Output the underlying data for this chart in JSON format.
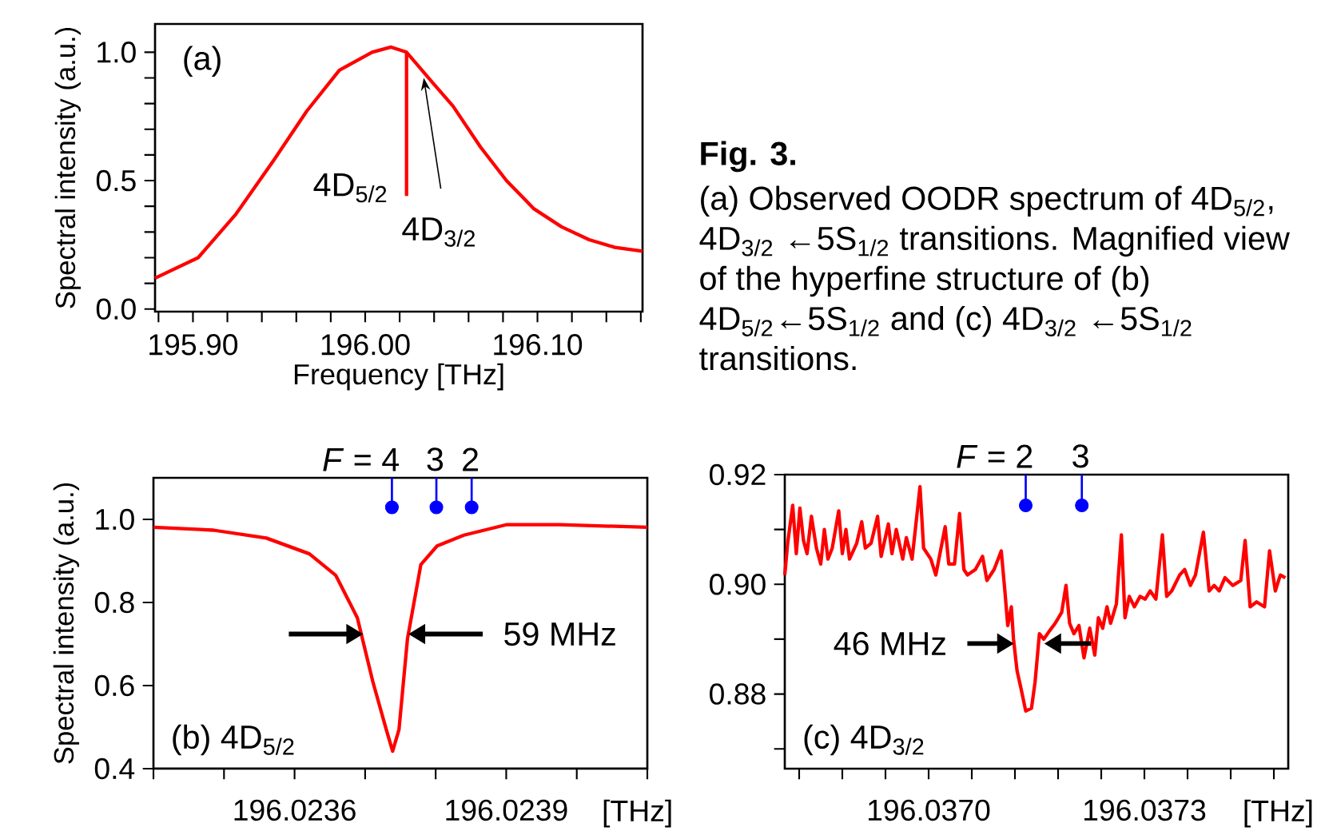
{
  "chart_data": [
    {
      "type": "line",
      "xlabel": "Frequency [THz]",
      "ylabel": "Spectral intensity (a.u.)",
      "xlim": [
        195.878,
        196.161
      ],
      "ylim": [
        -0.01,
        1.11
      ],
      "xticks": [
        {
          "value": 195.88,
          "label": null
        },
        {
          "value": 195.9,
          "label": "195.90"
        },
        {
          "value": 195.92,
          "label": null
        },
        {
          "value": 195.94,
          "label": null
        },
        {
          "value": 195.96,
          "label": null
        },
        {
          "value": 195.98,
          "label": null
        },
        {
          "value": 196.0,
          "label": "196.00"
        },
        {
          "value": 196.02,
          "label": null
        },
        {
          "value": 196.04,
          "label": null
        },
        {
          "value": 196.06,
          "label": null
        },
        {
          "value": 196.08,
          "label": null
        },
        {
          "value": 196.1,
          "label": "196.10"
        },
        {
          "value": 196.12,
          "label": null
        },
        {
          "value": 196.14,
          "label": null
        },
        {
          "value": 196.16,
          "label": null
        }
      ],
      "yticks": [
        {
          "value": 0,
          "label": "0.0"
        },
        {
          "value": 0.1,
          "label": null
        },
        {
          "value": 0.2,
          "label": null
        },
        {
          "value": 0.3,
          "label": null
        },
        {
          "value": 0.4,
          "label": null
        },
        0.5,
        {
          "value": 0.6,
          "label": null
        },
        {
          "value": 0.7,
          "label": null
        },
        {
          "value": 0.8,
          "label": null
        },
        {
          "value": 0.9,
          "label": null
        },
        {
          "value": 1,
          "label": "1.0"
        }
      ],
      "annotations": [
        "(a)",
        {
          "text": "4D$_{5/2}$",
          "x": 196.024,
          "y": 0.44
        },
        {
          "text": "4D$_{3/2}$",
          "x": 196.034,
          "y": 0.9
        }
      ],
      "series": [
        {
          "color": "#ff0000",
          "x": [
            195.878,
            195.903,
            195.925,
            195.947,
            195.966,
            195.985,
            196.004,
            196.015,
            196.024,
            196.038,
            196.051,
            196.067,
            196.082,
            196.098,
            196.114,
            196.13,
            196.145,
            196.161
          ],
          "values": [
            0.12,
            0.2,
            0.37,
            0.58,
            0.77,
            0.93,
            1.0,
            1.02,
            1.0,
            0.89,
            0.79,
            0.63,
            0.5,
            0.39,
            0.32,
            0.27,
            0.24,
            0.225
          ]
        },
        {
          "color": "#ff0000",
          "x": [
            196.024,
            196.024
          ],
          "values": [
            0.44,
            1.0
          ]
        }
      ]
    },
    {
      "type": "other",
      "title": "Fig. 3.",
      "subtitle": "(a) Observed OODR spectrum of 4D$_{5/2}$, 4D$_{3/2}$ ←5S$_{1/2}$ transitions. Magnified view of the hyperfine structure of (b) 4D$_{5/2}$←5S$_{1/2}$ and (c) 4D$_{3/2}$ ←5S$_{1/2}$ transitions."
    },
    {
      "type": "line",
      "xlabel": "[THz]",
      "ylabel": "Spectral intensity (a.u.)",
      "xlim": [
        196.0234,
        196.0241
      ],
      "ylim": [
        0.4,
        1.1
      ],
      "xticks": [
        {
          "value": 196.0234,
          "label": null
        },
        {
          "value": 196.0235,
          "label": null
        },
        196.0236,
        {
          "value": 196.0237,
          "label": null
        },
        {
          "value": 196.0238,
          "label": null
        },
        196.0239,
        {
          "value": 196.024,
          "label": null
        },
        {
          "value": 196.0241,
          "label": null
        }
      ],
      "yticks": [
        0.4,
        0.6,
        0.8,
        {
          "value": 1,
          "label": "1.0"
        }
      ],
      "annotations": [
        {
          "text": "*F* = 4",
          "x": 196.023738,
          "y": 1.029
        },
        {
          "text": "3",
          "x": 196.023801,
          "y": 1.029
        },
        {
          "text": "2",
          "x": 196.023851,
          "y": 1.029
        },
        "(b) 4D$_{5/2}$",
        {
          "text": "59 MHz",
          "x": 196.023761,
          "y": 0.724
        }
      ],
      "series": [
        {
          "color": "#ff0000",
          "x": [
            196.0234,
            196.023485,
            196.02356,
            196.023621,
            196.0236585,
            196.023689,
            196.023711,
            196.02373,
            196.023739,
            196.023748,
            196.02376,
            196.023779,
            196.023802,
            196.02384,
            196.0239,
            196.023976,
            196.0241
          ],
          "values": [
            0.981,
            0.974,
            0.955,
            0.917,
            0.865,
            0.763,
            0.609,
            0.494,
            0.442,
            0.494,
            0.712,
            0.891,
            0.936,
            0.962,
            0.987,
            0.987,
            0.981
          ]
        },
        {
          "type": "scatter",
          "marker": "circle",
          "color": "#0000ff",
          "x": [
            196.023738,
            196.023801,
            196.023851
          ],
          "values": [
            1.029,
            1.029,
            1.029
          ]
        }
      ]
    },
    {
      "type": "line",
      "xlabel": "[THz]",
      "xlim": [
        196.0368,
        196.0375
      ],
      "ylim": [
        0.8664,
        0.92
      ],
      "xticks": [
        {
          "value": 196.03682,
          "label": null
        },
        {
          "value": 196.03688,
          "label": null
        },
        {
          "value": 196.03694,
          "label": null
        },
        {
          "value": 196.037,
          "label": "196.0370"
        },
        {
          "value": 196.03706,
          "label": null
        },
        {
          "value": 196.03712,
          "label": null
        },
        {
          "value": 196.03718,
          "label": null
        },
        {
          "value": 196.03724,
          "label": null
        },
        {
          "value": 196.0373,
          "label": "196.0373"
        },
        {
          "value": 196.03736,
          "label": null
        },
        {
          "value": 196.03742,
          "label": null
        },
        {
          "value": 196.03748,
          "label": null
        }
      ],
      "yticks": [
        {
          "value": 0.87,
          "label": null
        },
        0.88,
        {
          "value": 0.89,
          "label": null
        },
        {
          "value": 0.9,
          "label": "0.90"
        },
        {
          "value": 0.91,
          "label": null
        },
        0.92
      ],
      "annotations": [
        {
          "text": "*F* = 2",
          "x": 196.037135,
          "y": 0.9144
        },
        {
          "text": "3",
          "x": 196.037213,
          "y": 0.9144
        },
        "(c) 4D$_{3/2}$",
        {
          "text": "46 MHz",
          "x": 196.037119,
          "y": 0.8892
        }
      ],
      "series": [
        {
          "color": "#ff0000",
          "x": [
            196.0368,
            196.036804,
            196.036811,
            196.036816,
            196.036821,
            196.036826,
            196.036831,
            196.036837,
            196.036844,
            196.03685,
            196.036855,
            196.03686,
            196.036866,
            196.036875,
            196.03688,
            196.036885,
            196.03689,
            196.0369,
            196.036907,
            196.036912,
            196.03692,
            196.036929,
            196.036934,
            196.036944,
            196.036949,
            196.036955,
            196.036964,
            196.036969,
            196.036977,
            196.036988,
            196.036993,
            196.037003,
            196.03701,
            196.037023,
            196.037028,
            196.037036,
            196.037043,
            196.037049,
            196.037054,
            196.037065,
            196.037075,
            196.037081,
            196.037091,
            196.037101,
            196.037106,
            196.03711,
            196.037115,
            196.037118,
            196.037123,
            196.037128,
            196.037135,
            196.037143,
            196.037148,
            196.037154,
            196.03716,
            196.037168,
            196.037176,
            196.037185,
            196.037191,
            196.037196,
            196.037202,
            196.037209,
            196.037216,
            196.037224,
            196.037231,
            196.037236,
            196.037242,
            196.037248,
            196.037253,
            196.037261,
            196.037268,
            196.037273,
            196.037279,
            196.037286,
            196.037294,
            196.037301,
            196.037308,
            196.037316,
            196.037325,
            196.037331,
            196.037338,
            196.037349,
            196.037356,
            196.037364,
            196.037371,
            196.037382,
            196.03739,
            196.037397,
            196.037404,
            196.037412,
            196.037423,
            196.037434,
            196.03744,
            196.037447,
            196.037456,
            196.037467,
            196.037474,
            196.037482,
            196.037489,
            196.037496
          ],
          "values": [
            0.9017,
            0.9075,
            0.9144,
            0.9056,
            0.9139,
            0.908,
            0.9056,
            0.9124,
            0.9066,
            0.9037,
            0.91,
            0.9046,
            0.9066,
            0.9134,
            0.9056,
            0.91,
            0.9046,
            0.9075,
            0.9114,
            0.9066,
            0.9075,
            0.9124,
            0.9051,
            0.911,
            0.9056,
            0.91,
            0.9046,
            0.9085,
            0.9046,
            0.9178,
            0.9066,
            0.9046,
            0.9017,
            0.9105,
            0.9037,
            0.9037,
            0.9129,
            0.9027,
            0.9017,
            0.9027,
            0.9051,
            0.9007,
            0.9027,
            0.9061,
            0.8988,
            0.8925,
            0.8959,
            0.89,
            0.8842,
            0.8813,
            0.8769,
            0.8774,
            0.8822,
            0.891,
            0.89,
            0.8915,
            0.8929,
            0.8949,
            0.8998,
            0.8929,
            0.891,
            0.8925,
            0.8866,
            0.892,
            0.8871,
            0.8939,
            0.892,
            0.8959,
            0.8929,
            0.8964,
            0.909,
            0.8939,
            0.8978,
            0.8959,
            0.8978,
            0.8973,
            0.8988,
            0.8973,
            0.909,
            0.8978,
            0.8988,
            0.9017,
            0.9027,
            0.8998,
            0.9017,
            0.9095,
            0.8988,
            0.8998,
            0.8988,
            0.9012,
            0.8998,
            0.9007,
            0.908,
            0.8959,
            0.8968,
            0.8959,
            0.9061,
            0.8988,
            0.9017,
            0.9012
          ]
        },
        {
          "type": "scatter",
          "marker": "circle",
          "color": "#0000ff",
          "x": [
            196.037135,
            196.037213
          ],
          "values": [
            0.9144,
            0.9144
          ]
        }
      ]
    }
  ]
}
